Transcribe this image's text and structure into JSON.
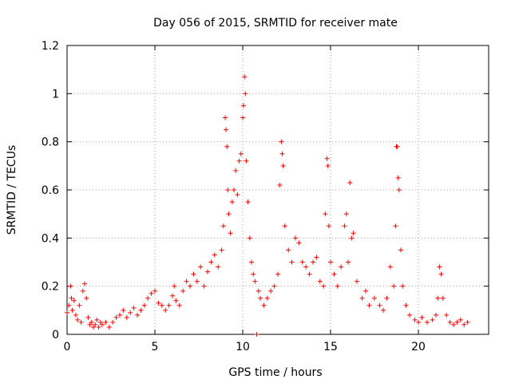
{
  "chart_data": {
    "type": "scatter",
    "title": "Day 056 of 2015, SRMTID for receiver mate",
    "xlabel": "GPS time / hours",
    "ylabel": "SRMTID / TECUs",
    "xlim": [
      0,
      24
    ],
    "ylim": [
      0,
      1.2
    ],
    "xticks": [
      0,
      5,
      10,
      15,
      20
    ],
    "xtick_labels": [
      "0",
      "5",
      "10",
      "15",
      "20"
    ],
    "yticks": [
      0,
      0.2,
      0.4,
      0.6,
      0.8,
      1.0,
      1.2
    ],
    "ytick_labels": [
      "0",
      "0.2",
      "0.4",
      "0.6",
      "0.8",
      "1",
      "1.2"
    ],
    "grid": true,
    "marker": "+",
    "color": "#ff0000",
    "series": [
      {
        "name": "SRMTID",
        "points": [
          [
            0.0,
            0.09
          ],
          [
            0.1,
            0.12
          ],
          [
            0.2,
            0.2
          ],
          [
            0.25,
            0.15
          ],
          [
            0.3,
            0.1
          ],
          [
            0.4,
            0.14
          ],
          [
            0.5,
            0.08
          ],
          [
            0.6,
            0.06
          ],
          [
            0.7,
            0.12
          ],
          [
            0.8,
            0.05
          ],
          [
            0.9,
            0.18
          ],
          [
            1.0,
            0.21
          ],
          [
            1.1,
            0.15
          ],
          [
            1.2,
            0.07
          ],
          [
            1.3,
            0.04
          ],
          [
            1.4,
            0.05
          ],
          [
            1.5,
            0.03
          ],
          [
            1.6,
            0.04
          ],
          [
            1.7,
            0.06
          ],
          [
            1.8,
            0.03
          ],
          [
            1.9,
            0.05
          ],
          [
            2.0,
            0.04
          ],
          [
            2.2,
            0.05
          ],
          [
            2.4,
            0.03
          ],
          [
            2.6,
            0.05
          ],
          [
            2.8,
            0.07
          ],
          [
            3.0,
            0.08
          ],
          [
            3.2,
            0.1
          ],
          [
            3.4,
            0.07
          ],
          [
            3.6,
            0.09
          ],
          [
            3.8,
            0.11
          ],
          [
            4.0,
            0.08
          ],
          [
            4.2,
            0.1
          ],
          [
            4.4,
            0.12
          ],
          [
            4.6,
            0.15
          ],
          [
            4.8,
            0.17
          ],
          [
            5.0,
            0.18
          ],
          [
            5.2,
            0.13
          ],
          [
            5.4,
            0.12
          ],
          [
            5.6,
            0.1
          ],
          [
            5.8,
            0.12
          ],
          [
            6.0,
            0.16
          ],
          [
            6.1,
            0.2
          ],
          [
            6.2,
            0.14
          ],
          [
            6.4,
            0.12
          ],
          [
            6.6,
            0.18
          ],
          [
            6.8,
            0.22
          ],
          [
            7.0,
            0.2
          ],
          [
            7.2,
            0.25
          ],
          [
            7.4,
            0.22
          ],
          [
            7.6,
            0.28
          ],
          [
            7.8,
            0.2
          ],
          [
            8.0,
            0.26
          ],
          [
            8.2,
            0.3
          ],
          [
            8.4,
            0.33
          ],
          [
            8.6,
            0.28
          ],
          [
            8.8,
            0.35
          ],
          [
            8.9,
            0.45
          ],
          [
            9.0,
            0.9
          ],
          [
            9.05,
            0.85
          ],
          [
            9.1,
            0.78
          ],
          [
            9.15,
            0.6
          ],
          [
            9.2,
            0.5
          ],
          [
            9.3,
            0.42
          ],
          [
            9.4,
            0.55
          ],
          [
            9.5,
            0.6
          ],
          [
            9.6,
            0.68
          ],
          [
            9.7,
            0.58
          ],
          [
            9.8,
            0.72
          ],
          [
            9.9,
            0.75
          ],
          [
            10.0,
            0.9
          ],
          [
            10.05,
            0.95
          ],
          [
            10.1,
            1.07
          ],
          [
            10.15,
            1.0
          ],
          [
            10.2,
            0.72
          ],
          [
            10.3,
            0.55
          ],
          [
            10.4,
            0.4
          ],
          [
            10.5,
            0.3
          ],
          [
            10.6,
            0.25
          ],
          [
            10.7,
            0.22
          ],
          [
            10.8,
            0.0
          ],
          [
            10.9,
            0.18
          ],
          [
            11.0,
            0.15
          ],
          [
            11.2,
            0.12
          ],
          [
            11.4,
            0.15
          ],
          [
            11.6,
            0.18
          ],
          [
            11.8,
            0.2
          ],
          [
            12.0,
            0.25
          ],
          [
            12.1,
            0.62
          ],
          [
            12.2,
            0.8
          ],
          [
            12.25,
            0.75
          ],
          [
            12.3,
            0.7
          ],
          [
            12.4,
            0.45
          ],
          [
            12.6,
            0.35
          ],
          [
            12.8,
            0.3
          ],
          [
            13.0,
            0.4
          ],
          [
            13.2,
            0.38
          ],
          [
            13.4,
            0.3
          ],
          [
            13.6,
            0.28
          ],
          [
            13.8,
            0.25
          ],
          [
            14.0,
            0.3
          ],
          [
            14.2,
            0.32
          ],
          [
            14.4,
            0.22
          ],
          [
            14.6,
            0.2
          ],
          [
            14.7,
            0.5
          ],
          [
            14.8,
            0.73
          ],
          [
            14.85,
            0.7
          ],
          [
            14.9,
            0.45
          ],
          [
            15.0,
            0.3
          ],
          [
            15.2,
            0.25
          ],
          [
            15.4,
            0.2
          ],
          [
            15.6,
            0.28
          ],
          [
            15.8,
            0.45
          ],
          [
            15.9,
            0.5
          ],
          [
            16.0,
            0.3
          ],
          [
            16.1,
            0.63
          ],
          [
            16.2,
            0.4
          ],
          [
            16.3,
            0.42
          ],
          [
            16.5,
            0.22
          ],
          [
            16.8,
            0.15
          ],
          [
            17.0,
            0.18
          ],
          [
            17.2,
            0.12
          ],
          [
            17.5,
            0.15
          ],
          [
            17.8,
            0.12
          ],
          [
            18.0,
            0.1
          ],
          [
            18.2,
            0.15
          ],
          [
            18.4,
            0.28
          ],
          [
            18.6,
            0.2
          ],
          [
            18.7,
            0.45
          ],
          [
            18.75,
            0.78
          ],
          [
            18.8,
            0.78
          ],
          [
            18.85,
            0.65
          ],
          [
            18.9,
            0.6
          ],
          [
            19.0,
            0.35
          ],
          [
            19.1,
            0.2
          ],
          [
            19.3,
            0.12
          ],
          [
            19.5,
            0.08
          ],
          [
            19.8,
            0.06
          ],
          [
            20.0,
            0.05
          ],
          [
            20.2,
            0.07
          ],
          [
            20.5,
            0.05
          ],
          [
            20.8,
            0.06
          ],
          [
            21.0,
            0.08
          ],
          [
            21.1,
            0.15
          ],
          [
            21.2,
            0.28
          ],
          [
            21.3,
            0.25
          ],
          [
            21.4,
            0.15
          ],
          [
            21.6,
            0.08
          ],
          [
            21.8,
            0.05
          ],
          [
            22.0,
            0.04
          ],
          [
            22.2,
            0.05
          ],
          [
            22.4,
            0.06
          ],
          [
            22.6,
            0.04
          ],
          [
            22.8,
            0.05
          ]
        ]
      }
    ]
  }
}
